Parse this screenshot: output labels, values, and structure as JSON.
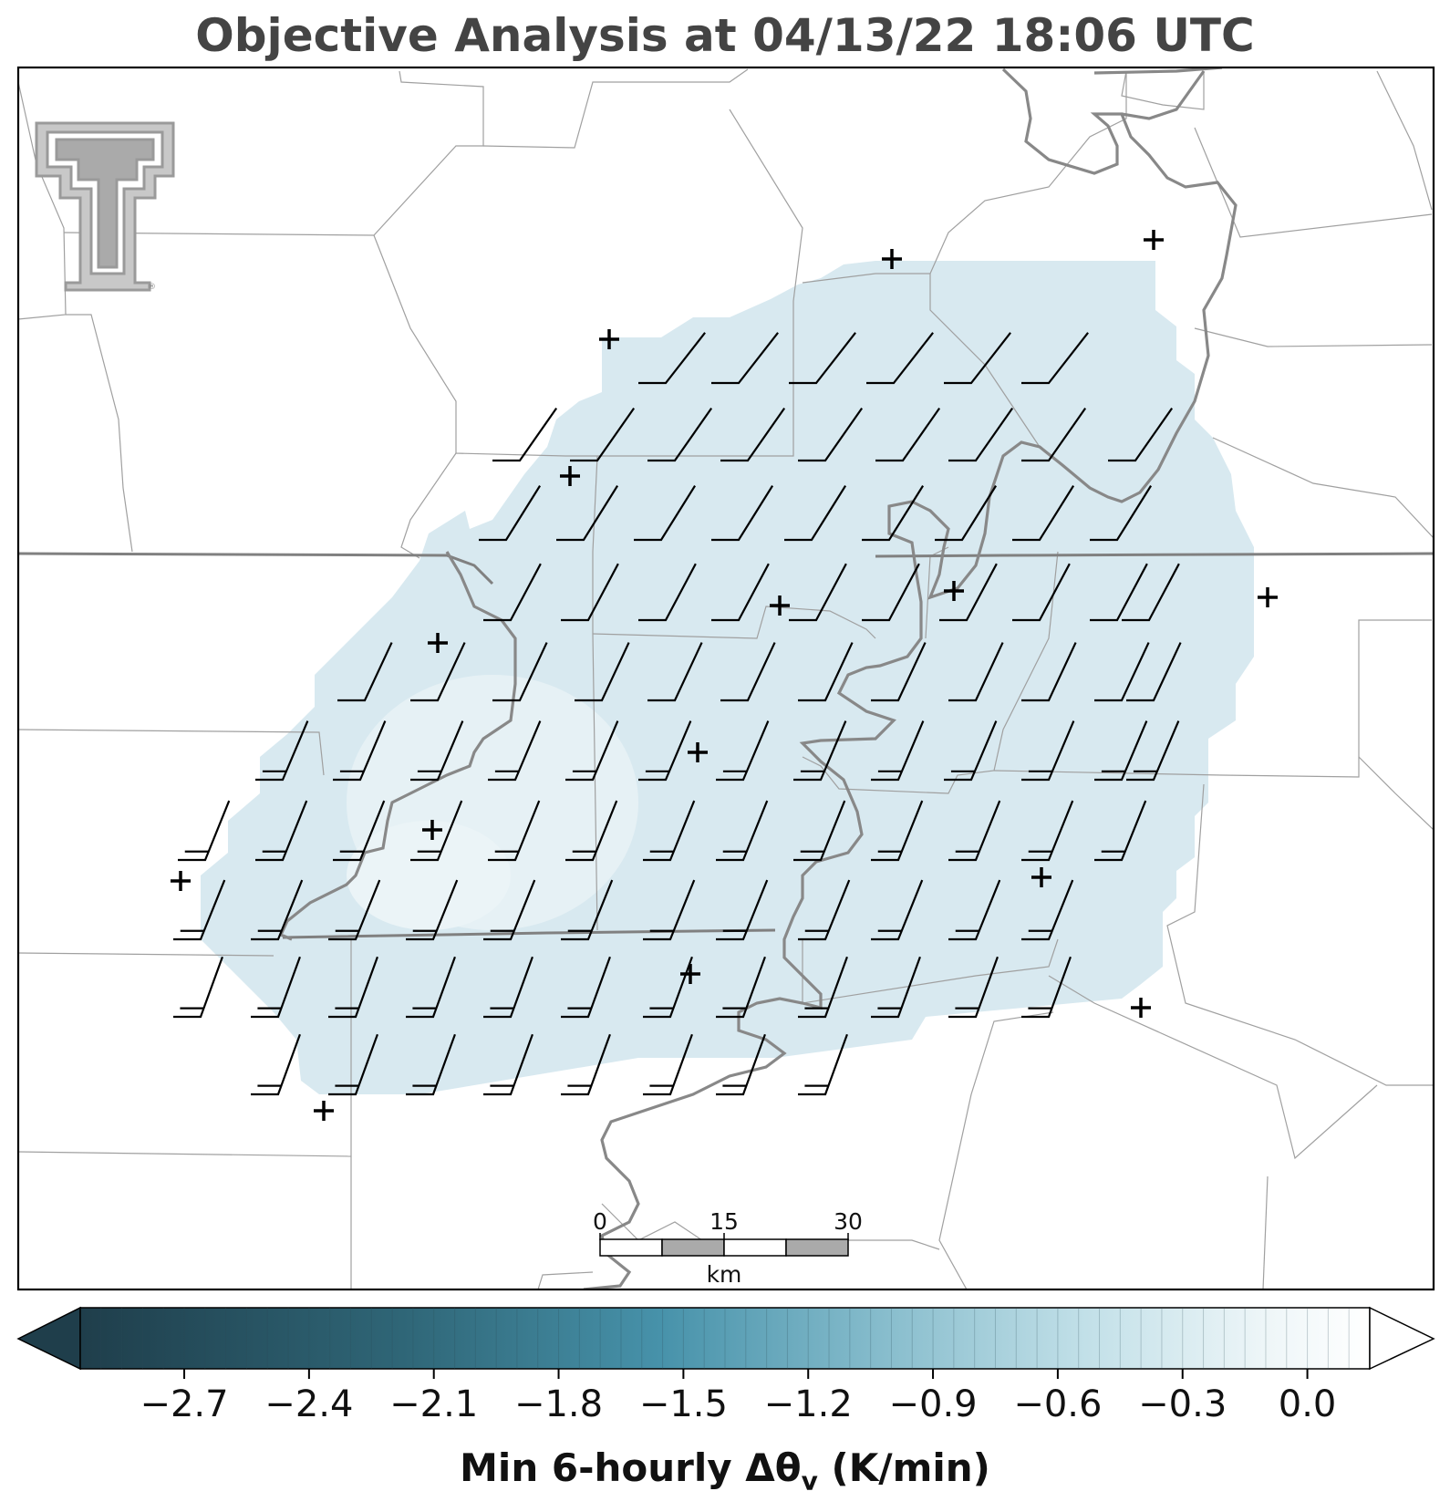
{
  "title": "Objective Analysis at 04/13/22 18:06 UTC",
  "logo": {
    "name": "texas-tech-double-t-logo",
    "registered_mark": "®"
  },
  "scale_bar": {
    "ticks": [
      "0",
      "15",
      "30"
    ],
    "unit": "km"
  },
  "colorbar": {
    "label": "Min 6-hourly Δθ",
    "label_subscript": "v",
    "label_units": "(K/min)",
    "ticks": [
      "−2.7",
      "−2.4",
      "−2.1",
      "−1.8",
      "−1.5",
      "−1.2",
      "−0.9",
      "−0.6",
      "−0.3",
      "0.0"
    ],
    "range": [
      -2.95,
      0.15
    ],
    "extend": "both",
    "colors": {
      "low": "#1f3e4b",
      "mid": "#4b93ab",
      "high": "#ffffff"
    }
  },
  "analysis_field": {
    "fill_color": "#d6e8ef",
    "value_range_approx": [
      -0.6,
      -0.2
    ]
  },
  "colors": {
    "state_border": "#808080",
    "river": "#808080",
    "county_line": "#a0a0a0",
    "barb": "#000000",
    "station": "#000000"
  }
}
